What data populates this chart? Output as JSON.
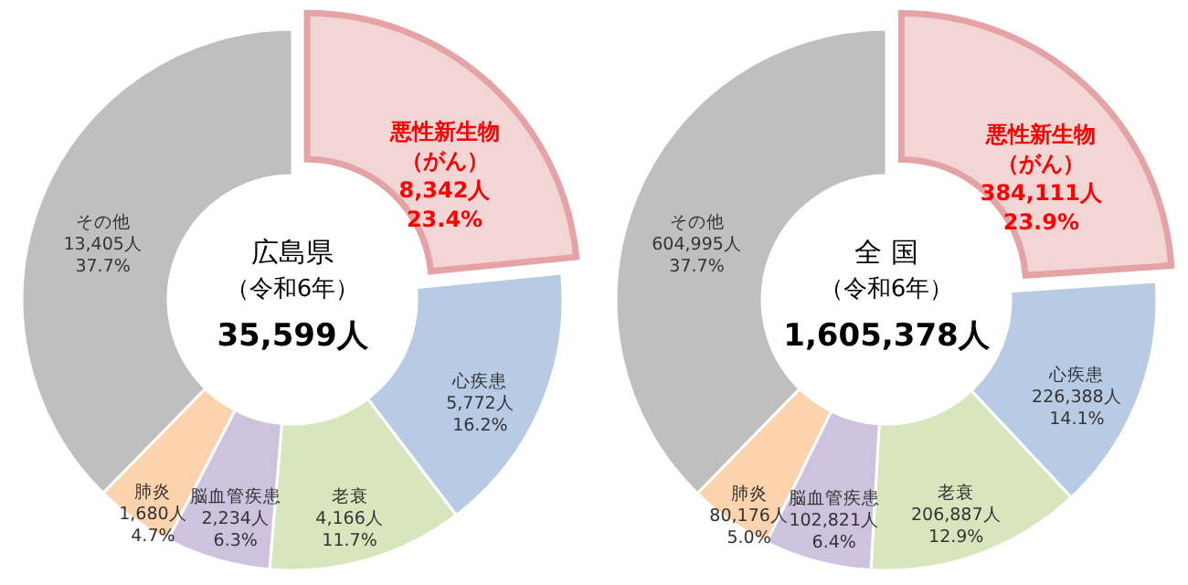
{
  "chart_data": [
    {
      "type": "donut",
      "title": "広島県",
      "subtitle": "（令和6年）",
      "annotations": [
        "35,599人"
      ],
      "categories": [
        "悪性新生物（がん）",
        "心疾患",
        "老衰",
        "脳血管疾患",
        "肺炎",
        "その他"
      ],
      "values": [
        8342,
        5772,
        4166,
        2234,
        1680,
        13405
      ],
      "value_labels": [
        "8,342人\n23.4%",
        "5,772人\n16.2%",
        "4,166人\n11.7%",
        "2,234人\n6.3%",
        "1,680人\n4.7%",
        "13,405人\n37.7%"
      ],
      "colors": [
        "#f2d5d5",
        "#b7cbe5",
        "#d8e6bd",
        "#cdc3de",
        "#fcd3ad",
        "#bfbfbf"
      ]
    },
    {
      "type": "donut",
      "title": "全 国",
      "subtitle": "（令和6年）",
      "annotations": [
        "1,605,378人"
      ],
      "categories": [
        "悪性新生物（がん）",
        "心疾患",
        "老衰",
        "脳血管疾患",
        "肺炎",
        "その他"
      ],
      "values": [
        384111,
        226388,
        206887,
        102821,
        80176,
        604995
      ],
      "value_labels": [
        "384,111人\n23.9%",
        "226,388人\n14.1%",
        "206,887人\n12.9%",
        "102,821人\n6.4%",
        "80,176人\n5.0%",
        "604,995人\n37.7%"
      ],
      "colors": [
        "#f2d5d5",
        "#b7cbe5",
        "#d8e6bd",
        "#cdc3de",
        "#fcd3ad",
        "#bfbfbf"
      ]
    }
  ]
}
